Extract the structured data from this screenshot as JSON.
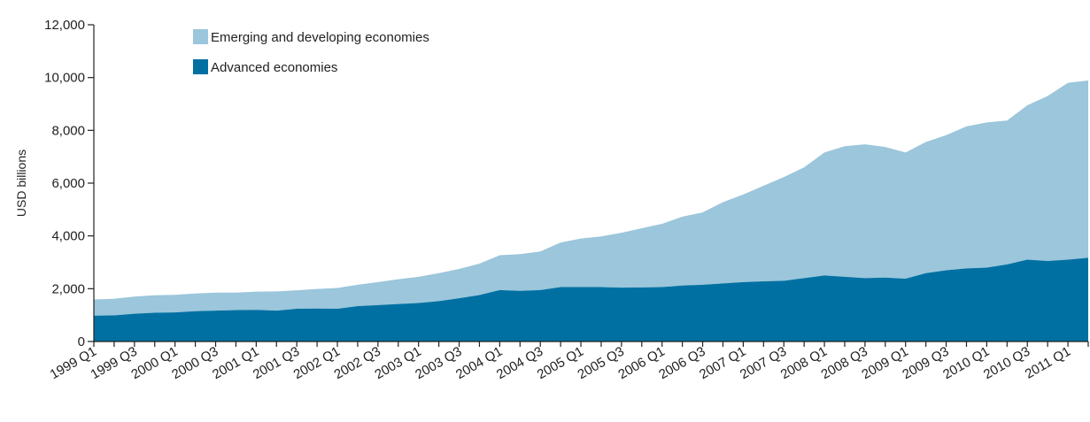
{
  "chart_data": {
    "type": "area",
    "stacked": true,
    "ylabel": "USD billions",
    "ylim": [
      0,
      12000
    ],
    "yticks": [
      0,
      2000,
      4000,
      6000,
      8000,
      10000,
      12000
    ],
    "ytick_labels": [
      "0",
      "2,000",
      "4,000",
      "6,000",
      "8,000",
      "10,000",
      "12,000"
    ],
    "x": [
      "1999 Q1",
      "1999 Q2",
      "1999 Q3",
      "1999 Q4",
      "2000 Q1",
      "2000 Q2",
      "2000 Q3",
      "2000 Q4",
      "2001 Q1",
      "2001 Q2",
      "2001 Q3",
      "2001 Q4",
      "2002 Q1",
      "2002 Q2",
      "2002 Q3",
      "2002 Q4",
      "2003 Q1",
      "2003 Q2",
      "2003 Q3",
      "2003 Q4",
      "2004 Q1",
      "2004 Q2",
      "2004 Q3",
      "2004 Q4",
      "2005 Q1",
      "2005 Q2",
      "2005 Q3",
      "2005 Q4",
      "2006 Q1",
      "2006 Q2",
      "2006 Q3",
      "2006 Q4",
      "2007 Q1",
      "2007 Q2",
      "2007 Q3",
      "2007 Q4",
      "2008 Q1",
      "2008 Q2",
      "2008 Q3",
      "2008 Q4",
      "2009 Q1",
      "2009 Q2",
      "2009 Q3",
      "2009 Q4",
      "2010 Q1",
      "2010 Q2",
      "2010 Q3",
      "2010 Q4",
      "2011 Q1",
      "2011 Q2"
    ],
    "xtick_labels": [
      "1999 Q1",
      "1999 Q3",
      "2000 Q1",
      "2000 Q3",
      "2001 Q1",
      "2001 Q3",
      "2002 Q1",
      "2002 Q3",
      "2003 Q1",
      "2003 Q3",
      "2004 Q1",
      "2004 Q3",
      "2005 Q1",
      "2005 Q3",
      "2006 Q1",
      "2006 Q3",
      "2007 Q1",
      "2007 Q3",
      "2008 Q1",
      "2008 Q3",
      "2009 Q1",
      "2009 Q3",
      "2010 Q1",
      "2010 Q3",
      "2011 Q1"
    ],
    "series": [
      {
        "name": "Advanced economies",
        "color": "#0070a3",
        "values": [
          980,
          990,
          1050,
          1090,
          1100,
          1150,
          1170,
          1190,
          1200,
          1170,
          1240,
          1250,
          1240,
          1340,
          1380,
          1420,
          1460,
          1530,
          1640,
          1760,
          1950,
          1920,
          1950,
          2060,
          2060,
          2060,
          2040,
          2050,
          2060,
          2120,
          2150,
          2200,
          2250,
          2280,
          2300,
          2400,
          2500,
          2450,
          2400,
          2420,
          2380,
          2590,
          2700,
          2770,
          2800,
          2920,
          3100,
          3050,
          3100,
          3170
        ]
      },
      {
        "name": "Emerging and developing economies",
        "color": "#9bc6db",
        "values": [
          610,
          630,
          650,
          660,
          670,
          670,
          680,
          660,
          690,
          730,
          700,
          740,
          790,
          810,
          870,
          940,
          990,
          1060,
          1110,
          1190,
          1320,
          1390,
          1460,
          1690,
          1840,
          1920,
          2080,
          2240,
          2400,
          2610,
          2740,
          3080,
          3320,
          3620,
          3930,
          4200,
          4660,
          4950,
          5070,
          4950,
          4780,
          4970,
          5120,
          5380,
          5500,
          5450,
          5850,
          6250,
          6700,
          6720
        ]
      }
    ],
    "legend": {
      "placement": "top-left",
      "entries": [
        {
          "label": "Emerging and developing economies",
          "color": "#9bc6db"
        },
        {
          "label": "Advanced economies",
          "color": "#0070a3"
        }
      ]
    },
    "grid": false
  }
}
